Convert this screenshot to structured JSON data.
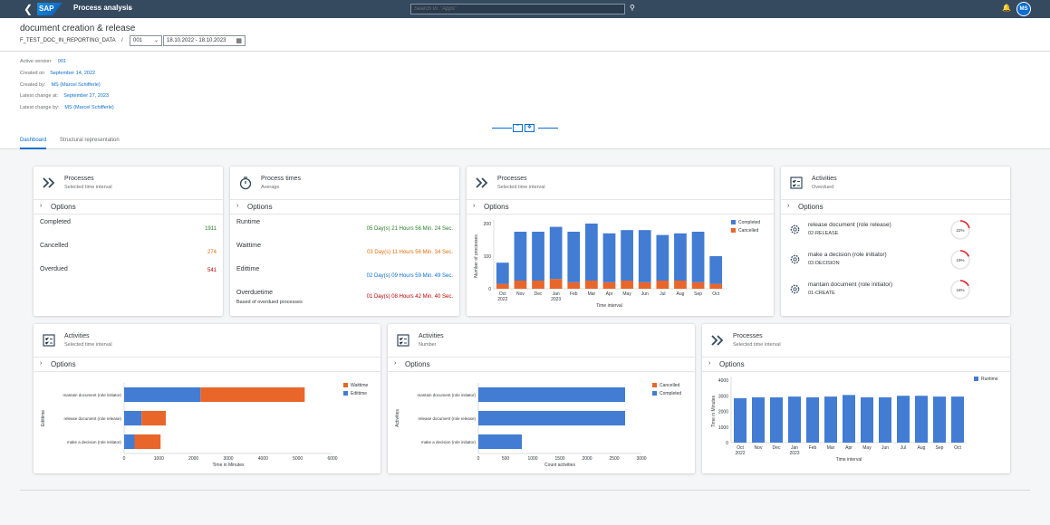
{
  "shell": {
    "app_title": "Process analysis",
    "search_placeholder": "Search In: \"Apps\"",
    "user_initials": "MS",
    "logo": "SAP"
  },
  "header": {
    "title": "document creation & release",
    "object": "F_TEST_DOC_IN_REPORTING_DATA",
    "separator": "/",
    "version": "001",
    "date_range": "18.10.2022 - 18.10.2023"
  },
  "meta": [
    {
      "label": "Active version:",
      "value": "001"
    },
    {
      "label": "Created on",
      "value": "September 14, 2022"
    },
    {
      "label": "Created by:",
      "value": "MS (Marcel Schifferle)"
    },
    {
      "label": "Latest change at:",
      "value": "September 27, 2023"
    },
    {
      "label": "Latest change by:",
      "value": "MS (Marcel Schifferle)"
    }
  ],
  "tabs": [
    {
      "label": "Dashboard"
    },
    {
      "label": "Structural representation"
    }
  ],
  "options_label": "Options",
  "cards": {
    "processes": {
      "title": "Processes",
      "subtitle": "Selected time interval",
      "rows": [
        {
          "label": "Completed",
          "value": "1911"
        },
        {
          "label": "Cancelled",
          "value": "274"
        },
        {
          "label": "Overdued",
          "value": "541"
        }
      ]
    },
    "times": {
      "title": "Process times",
      "subtitle": "Average",
      "rows": [
        {
          "label": "Runtime",
          "value": "05 Day(s) 21 Hours 56 Min. 24 Sec."
        },
        {
          "label": "Waittime",
          "value": "03 Day(s) 11 Hours 56 Min. 34 Sec."
        },
        {
          "label": "Edittime",
          "value": "02 Day(s) 09 Hours 59 Min. 49 Sec."
        },
        {
          "label": "Overduetime",
          "value": "01 Day(s) 08 Hours 42 Min. 40 Sec."
        }
      ],
      "overdue_note": "Based of overdued processes"
    },
    "processes_chart": {
      "title": "Processes",
      "subtitle": "Selected time interval"
    },
    "activities_overdue": {
      "title": "Activities",
      "subtitle": "Overdued",
      "items": [
        {
          "name": "release document (role release)",
          "code": "02-RELEASE",
          "pct": "22%",
          "fraction": 0.22
        },
        {
          "name": "make a decision (role initiator)",
          "code": "03-DECISION",
          "pct": "19%",
          "fraction": 0.19
        },
        {
          "name": "mantain document (role initiator)",
          "code": "01-CREATE",
          "pct": "18%",
          "fraction": 0.18
        }
      ]
    },
    "activities_time": {
      "title": "Activities",
      "subtitle": "Selected time interval"
    },
    "activities_number": {
      "title": "Activities",
      "subtitle": "Number"
    },
    "processes_runtime": {
      "title": "Processes",
      "subtitle": "Selected time interval"
    }
  },
  "colors": {
    "blue": "#427cd3",
    "orange": "#e9662a",
    "shell": "#354a5f",
    "link": "#0a6ed1",
    "green": "#2b7d2b",
    "amber": "#df6e0c",
    "red": "#bb0000"
  },
  "chart_data": [
    {
      "type": "bar",
      "stacked": true,
      "categories": [
        "Oct",
        "Nov",
        "Dec",
        "Jan",
        "Feb",
        "Mar",
        "Apr",
        "May",
        "Jun",
        "Jul",
        "Aug",
        "Sep",
        "Oct"
      ],
      "year_labels": [
        "2022",
        "2023"
      ],
      "series": [
        {
          "name": "Completed",
          "values": [
            65,
            150,
            150,
            160,
            155,
            175,
            150,
            155,
            160,
            140,
            145,
            155,
            85
          ]
        },
        {
          "name": "Cancelled",
          "values": [
            15,
            25,
            25,
            30,
            20,
            25,
            20,
            25,
            20,
            25,
            25,
            20,
            15
          ]
        }
      ],
      "xlabel": "Time interval",
      "ylabel": "Number of processes",
      "ylim": [
        0,
        200
      ],
      "yticks": [
        0,
        100,
        200
      ],
      "legend": "top-right"
    },
    {
      "type": "bar",
      "orientation": "horizontal",
      "stacked": true,
      "categories": [
        "mantain document (role initiator)",
        "release document (role release)",
        "make a decision (role initiator)"
      ],
      "series": [
        {
          "name": "Waittime",
          "values": [
            3000,
            700,
            750
          ]
        },
        {
          "name": "Edittime",
          "values": [
            2200,
            500,
            300
          ]
        }
      ],
      "xlabel": "Time in Minutes",
      "ylabel": "Edittime",
      "xlim": [
        0,
        6000
      ],
      "xticks": [
        0,
        1000,
        2000,
        3000,
        4000,
        5000,
        6000
      ],
      "legend": "top-right"
    },
    {
      "type": "bar",
      "orientation": "horizontal",
      "stacked": true,
      "categories": [
        "mantain document (role initiator)",
        "release document (role release)",
        "make a decision (role initiator)"
      ],
      "series": [
        {
          "name": "Cancelled",
          "values": [
            0,
            0,
            0
          ]
        },
        {
          "name": "Completed",
          "values": [
            2700,
            2700,
            800
          ]
        }
      ],
      "xlabel": "Count activities",
      "ylabel": "Activities",
      "xlim": [
        0,
        3000
      ],
      "xticks": [
        0,
        500,
        1000,
        1500,
        2000,
        2500,
        3000
      ],
      "legend": "top-right"
    },
    {
      "type": "bar",
      "categories": [
        "Oct",
        "Nov",
        "Dec",
        "Jan",
        "Feb",
        "Mar",
        "Apr",
        "May",
        "Jun",
        "Jul",
        "Aug",
        "Sep",
        "Oct"
      ],
      "year_labels": [
        "2022",
        "2023"
      ],
      "series": [
        {
          "name": "Runtime",
          "values": [
            2850,
            2900,
            2900,
            2950,
            2900,
            2950,
            3050,
            2900,
            2900,
            3000,
            3000,
            2950,
            2950
          ]
        }
      ],
      "xlabel": "Time interval",
      "ylabel": "Time in Minutes",
      "ylim": [
        0,
        4000
      ],
      "yticks": [
        0,
        1000,
        2000,
        3000,
        4000
      ],
      "legend": "top-right"
    }
  ]
}
